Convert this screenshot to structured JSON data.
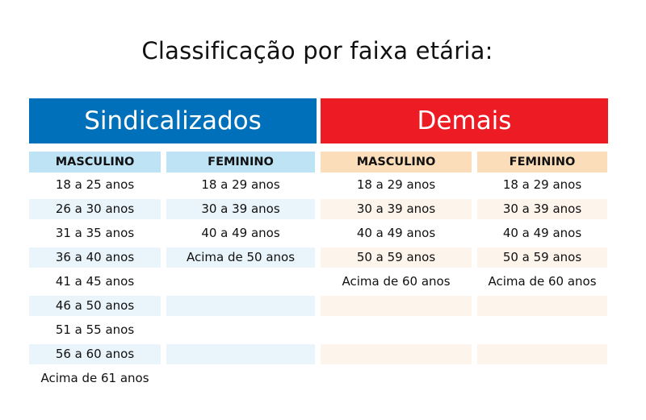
{
  "title": "Classificação por faixa etária:",
  "colors": {
    "blue": "#0070BA",
    "red": "#ED1C24",
    "blue_head": "#BEE3F5",
    "blue_row": "#EAF5FB",
    "peach_head": "#FCDDBA",
    "peach_row": "#FDF4EB"
  },
  "groups": {
    "sindicalizados": "Sindicalizados",
    "demais": "Demais"
  },
  "columns": [
    {
      "group": "sindicalizados",
      "header": "MASCULINO",
      "items": [
        "18 a 25 anos",
        "26 a 30 anos",
        "31 a 35 anos",
        "36 a 40 anos",
        "41 a 45 anos",
        "46 a 50 anos",
        "51 a 55 anos",
        "56 a 60 anos",
        "Acima de 61 anos"
      ]
    },
    {
      "group": "sindicalizados",
      "header": "FEMININO",
      "items": [
        "18 a 29 anos",
        "30 a 39 anos",
        "40 a 49 anos",
        "Acima de 50 anos"
      ]
    },
    {
      "group": "demais",
      "header": "MASCULINO",
      "items": [
        "18 a 29 anos",
        "30 a 39 anos",
        "40 a 49 anos",
        "50 a 59 anos",
        "Acima de 60 anos"
      ]
    },
    {
      "group": "demais",
      "header": "FEMININO",
      "items": [
        "18 a 29 anos",
        "30 a 39 anos",
        "40 a 49 anos",
        "50 a 59 anos",
        "Acima de 60 anos"
      ]
    }
  ]
}
